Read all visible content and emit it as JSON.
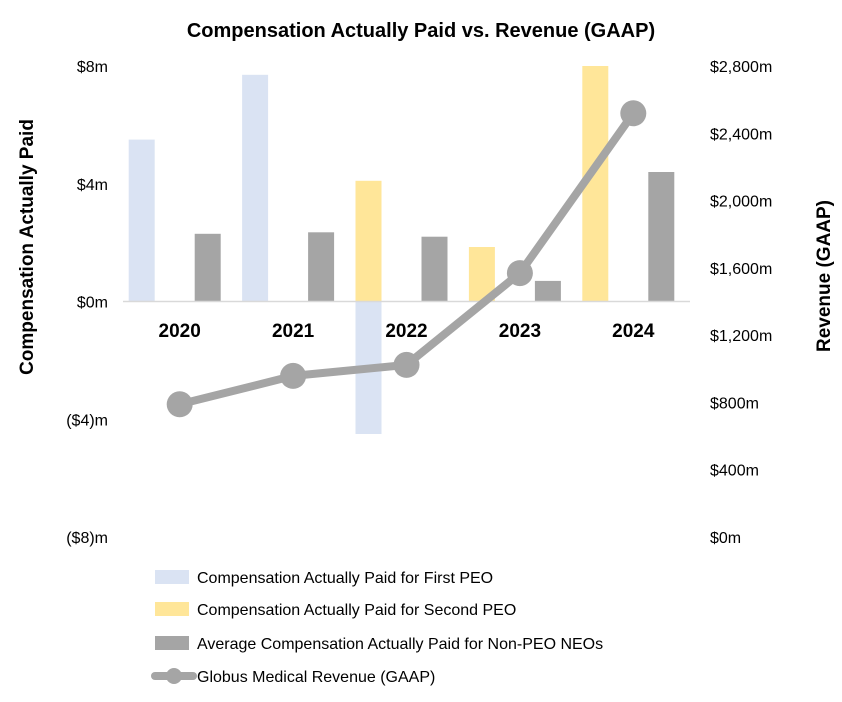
{
  "chart_data": {
    "type": "bar",
    "title": "Compensation Actually Paid vs. Revenue (GAAP)",
    "categories": [
      "2020",
      "2021",
      "2022",
      "2023",
      "2024"
    ],
    "y_left": {
      "label": "Compensation Actually Paid",
      "range": [
        -8,
        8
      ],
      "ticks": [
        8,
        4,
        0,
        -4,
        -8
      ],
      "tick_labels": [
        "$8m",
        "$4m",
        "$0m",
        "($4)m",
        "($8)m"
      ]
    },
    "y_right": {
      "label": "Revenue (GAAP)",
      "range": [
        0,
        2800
      ],
      "ticks": [
        2800,
        2400,
        2000,
        1600,
        1200,
        800,
        400,
        0
      ],
      "tick_labels": [
        "$2,800m",
        "$2,400m",
        "$2,000m",
        "$1,600m",
        "$1,200m",
        "$800m",
        "$400m",
        "$0m"
      ]
    },
    "series": [
      {
        "name": "Compensation Actually Paid for First PEO",
        "type": "bar",
        "axis": "left",
        "color": "#dae3f3",
        "values": [
          5.5,
          7.7,
          -4.5,
          null,
          null
        ]
      },
      {
        "name": "Compensation Actually Paid for Second PEO",
        "type": "bar",
        "axis": "left",
        "color": "#ffe699",
        "values": [
          null,
          null,
          4.1,
          1.85,
          8.0
        ]
      },
      {
        "name": "Average Compensation Actually Paid for Non-PEO NEOs",
        "type": "bar",
        "axis": "left",
        "color": "#a5a5a5",
        "values": [
          2.3,
          2.35,
          2.2,
          0.7,
          4.4
        ]
      },
      {
        "name": "Globus Medical Revenue (GAAP)",
        "type": "line",
        "axis": "right",
        "color": "#a5a5a5",
        "values": [
          789,
          958,
          1023,
          1569,
          2519
        ]
      }
    ],
    "grid": false,
    "legend": "bottom"
  }
}
